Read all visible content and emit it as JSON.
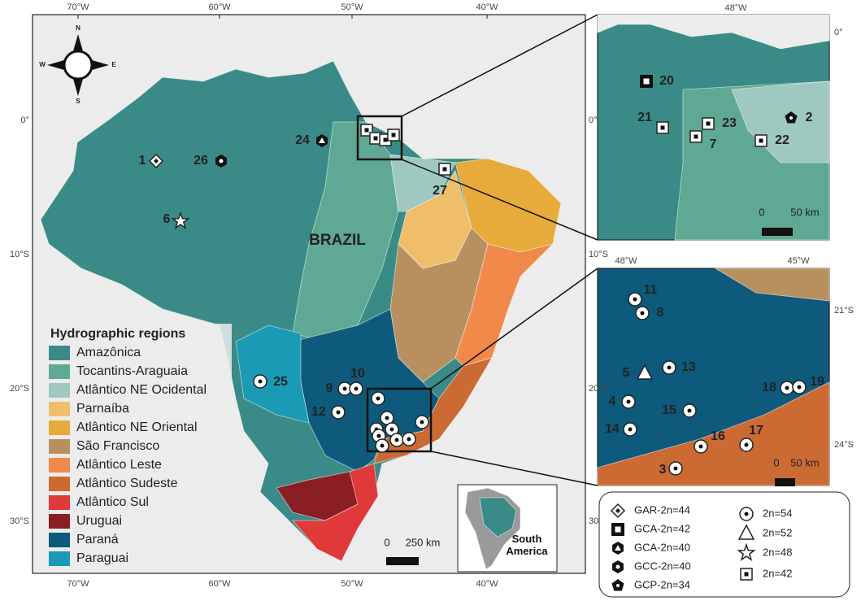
{
  "main_map": {
    "title": "BRAZIL",
    "lon_ticks": [
      "70°W",
      "60°W",
      "50°W",
      "40°W"
    ],
    "lat_ticks": [
      "0°",
      "10°S",
      "20°S",
      "30°S"
    ],
    "compass": {
      "n": "N",
      "s": "S",
      "e": "E",
      "w": "W"
    },
    "points": [
      "1",
      "26",
      "6",
      "24",
      "27",
      "9",
      "10",
      "12",
      "25"
    ],
    "scale": {
      "start": "0",
      "end": "250 km"
    },
    "inset_label": "South America"
  },
  "legend": {
    "title": "Hydrographic regions",
    "items": [
      "Amazônica",
      "Tocantins-Araguaia",
      "Atlântico NE Ocidental",
      "Parnaíba",
      "Atlântico NE Oriental",
      "São Francisco",
      "Atlântico Leste",
      "Atlântico Sudeste",
      "Atlântico Sul",
      "Uruguai",
      "Paraná",
      "Paraguai"
    ]
  },
  "inset_north": {
    "lon_ticks": [
      "48°W"
    ],
    "lat_ticks": [
      "0°"
    ],
    "points": [
      "20",
      "21",
      "23",
      "7",
      "22",
      "2"
    ],
    "scale": {
      "start": "0",
      "end": "50 km"
    }
  },
  "inset_southeast": {
    "lon_ticks": [
      "48°W",
      "45°W"
    ],
    "lat_ticks": [
      "21°S",
      "24°S"
    ],
    "points": [
      "11",
      "8",
      "5",
      "13",
      "18",
      "19",
      "4",
      "15",
      "14",
      "16",
      "17",
      "3"
    ],
    "scale": {
      "start": "0",
      "end": "50 km"
    }
  },
  "symbol_legend": {
    "items": [
      "GAR-2n=44",
      "GCA-2n=42",
      "GCA-2n=40",
      "GCC-2n=40",
      "GCP-2n=34",
      "2n=54",
      "2n=52",
      "2n=48",
      "2n=42"
    ]
  }
}
